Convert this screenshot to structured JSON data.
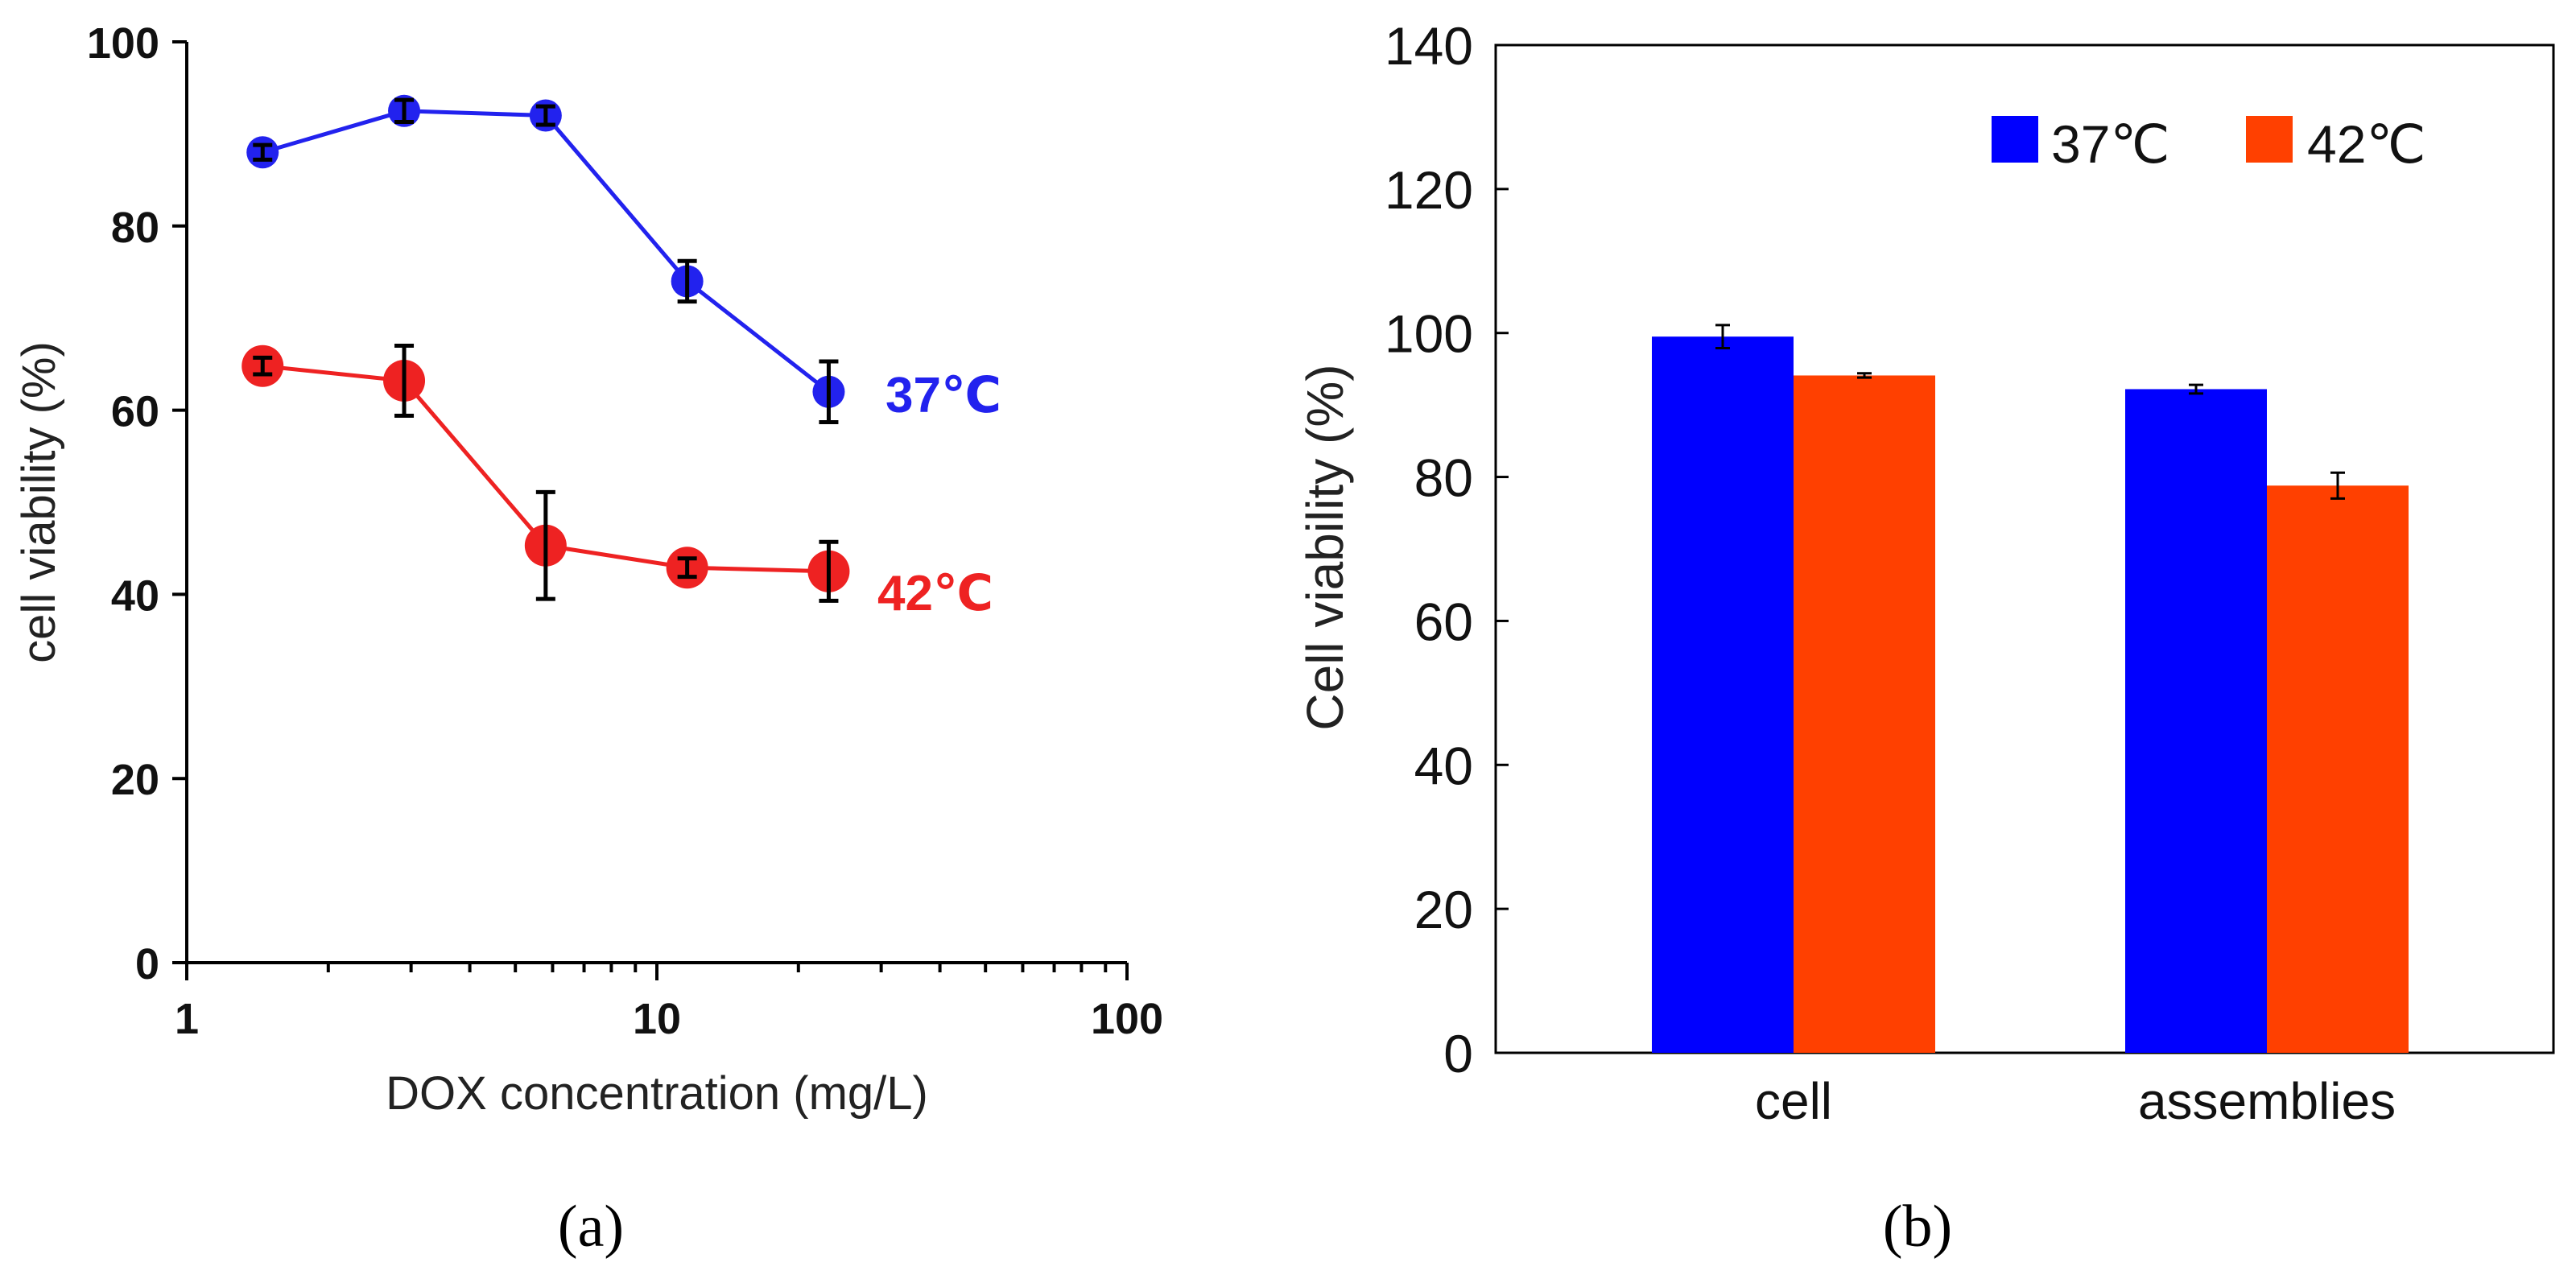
{
  "chart_data": [
    {
      "panel": "a",
      "type": "line",
      "x_scale": "log",
      "xlabel": "DOX concentration (mg/L)",
      "ylabel": "cell viability (%)",
      "xlim": [
        1,
        100
      ],
      "ylim": [
        0,
        100
      ],
      "x_ticks": [
        1,
        10,
        100
      ],
      "x_tick_labels": [
        "1",
        "10",
        "100"
      ],
      "y_ticks": [
        0,
        20,
        40,
        60,
        80,
        100
      ],
      "y_tick_labels": [
        "0",
        "20",
        "40",
        "60",
        "80",
        "100"
      ],
      "x": [
        1.45,
        2.9,
        5.8,
        11.6,
        23.2
      ],
      "series": [
        {
          "name": "37°C",
          "label": "37℃",
          "color": "#2222ee",
          "values": [
            88,
            92.5,
            92,
            74,
            62
          ],
          "errors": [
            0.8,
            1.2,
            1.0,
            2.2,
            3.3
          ]
        },
        {
          "name": "42°C",
          "label": "42℃",
          "color": "#ee2222",
          "values": [
            64.8,
            63.2,
            45.3,
            42.9,
            42.5
          ],
          "errors": [
            0.9,
            3.8,
            5.8,
            1.0,
            3.2
          ]
        }
      ],
      "caption": "(a)"
    },
    {
      "panel": "b",
      "type": "bar",
      "ylabel": "Cell viability (%)",
      "ylim": [
        0,
        140
      ],
      "y_ticks": [
        0,
        20,
        40,
        60,
        80,
        100,
        120,
        140
      ],
      "y_tick_labels": [
        "0",
        "20",
        "40",
        "60",
        "80",
        "100",
        "120",
        "140"
      ],
      "categories": [
        "cell",
        "assemblies"
      ],
      "series": [
        {
          "name": "37℃",
          "color": "#0000ff",
          "values": [
            99.5,
            92.2
          ],
          "errors": [
            1.6,
            0.6
          ]
        },
        {
          "name": "42℃",
          "color": "#ff4000",
          "values": [
            94.1,
            78.8
          ],
          "errors": [
            0.3,
            1.8
          ]
        }
      ],
      "legend_position": "top-right",
      "caption": "(b)"
    }
  ]
}
